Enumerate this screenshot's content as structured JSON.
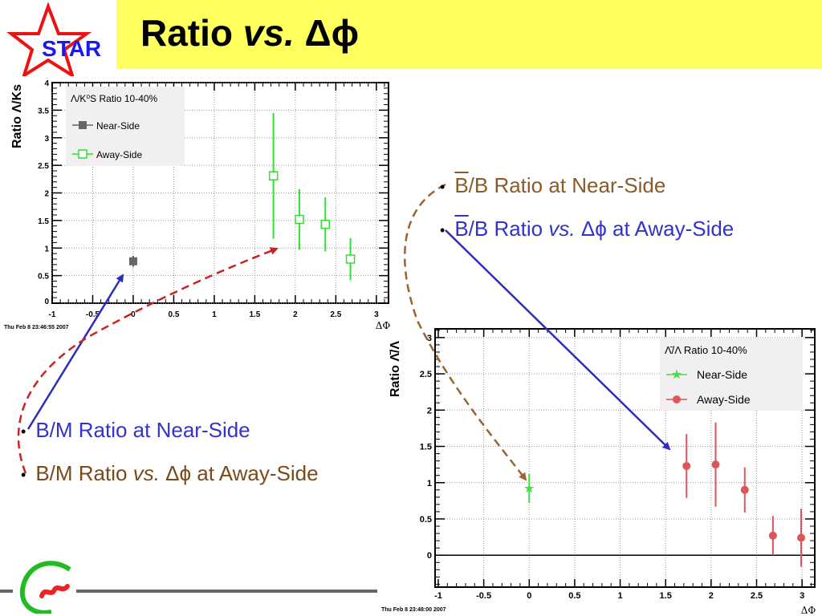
{
  "slide": {
    "title_main": "Ratio ",
    "title_italic": "vs.",
    "title_symbol": " Δϕ",
    "logo_text": "STAR"
  },
  "bullets": {
    "right": [
      {
        "prefix": "B",
        "text": "/B Ratio at Near-Side",
        "italic": "",
        "suffix": "",
        "color": "#8b5a2b"
      },
      {
        "prefix": "B",
        "text": "/B Ratio ",
        "italic": "vs.",
        "suffix": " Δϕ at Away-Side",
        "color": "#3333cc"
      }
    ],
    "left": [
      {
        "text": "B/M Ratio at Near-Side",
        "italic": "",
        "suffix": "",
        "color": "#3333cc"
      },
      {
        "text": "B/M Ratio ",
        "italic": "vs.",
        "suffix": " Δϕ at Away-Side",
        "color": "#7a4a1a"
      }
    ]
  },
  "chart_data": [
    {
      "type": "scatter",
      "title": "",
      "ylabel": "Ratio Λ/Ks",
      "xlabel": "ΔΦ",
      "legend_title": "Λ/K⁰S Ratio 10-40%",
      "legend_placement": "top-left",
      "xlim": [
        -1,
        3.15
      ],
      "ylim": [
        0,
        4
      ],
      "xticks": [
        -1,
        -0.5,
        0,
        0.5,
        1,
        1.5,
        2,
        2.5,
        3
      ],
      "yticks": [
        0,
        0.5,
        1,
        1.5,
        2,
        2.5,
        3,
        3.5,
        4
      ],
      "grid": true,
      "timestamp": "Thu Feb  8 23:46:55 2007",
      "series": [
        {
          "name": "Near-Side",
          "color": "#666666",
          "marker": "filled-square",
          "points": [
            {
              "x": 0,
              "y": 0.76,
              "err": 0.1
            }
          ]
        },
        {
          "name": "Away-Side",
          "color": "#33dd33",
          "marker": "open-square",
          "points": [
            {
              "x": 1.73,
              "y": 2.31,
              "err": 1.14
            },
            {
              "x": 2.05,
              "y": 1.52,
              "err": 0.55
            },
            {
              "x": 2.37,
              "y": 1.43,
              "err": 0.49
            },
            {
              "x": 2.68,
              "y": 0.8,
              "err": 0.38
            }
          ]
        }
      ]
    },
    {
      "type": "scatter",
      "title": "",
      "ylabel": "Ratio Λ̄/Λ",
      "xlabel": "ΔΦ",
      "legend_title": "Λ̄/Λ Ratio 10-40%",
      "legend_placement": "top-right",
      "xlim": [
        -1.035,
        3.14
      ],
      "ylim": [
        -0.44,
        3.12
      ],
      "xticks": [
        -1,
        -0.5,
        0,
        0.5,
        1,
        1.5,
        2,
        2.5,
        3
      ],
      "yticks": [
        0,
        0.5,
        1,
        1.5,
        2,
        2.5,
        3
      ],
      "grid": true,
      "zero_line": true,
      "timestamp": "Thu Feb  8 23:48:00 2007",
      "series": [
        {
          "name": "Near-Side",
          "color": "#44dd44",
          "marker": "star",
          "points": [
            {
              "x": 0,
              "y": 0.92,
              "err": 0.2
            }
          ]
        },
        {
          "name": "Away-Side",
          "color": "#dd5555",
          "marker": "circle",
          "points": [
            {
              "x": 1.73,
              "y": 1.23,
              "err": 0.44
            },
            {
              "x": 2.05,
              "y": 1.25,
              "err": 0.58
            },
            {
              "x": 2.37,
              "y": 0.9,
              "err": 0.31
            },
            {
              "x": 2.68,
              "y": 0.27,
              "err": 0.27
            },
            {
              "x": 2.99,
              "y": 0.24,
              "err": 0.4
            }
          ]
        }
      ]
    }
  ]
}
